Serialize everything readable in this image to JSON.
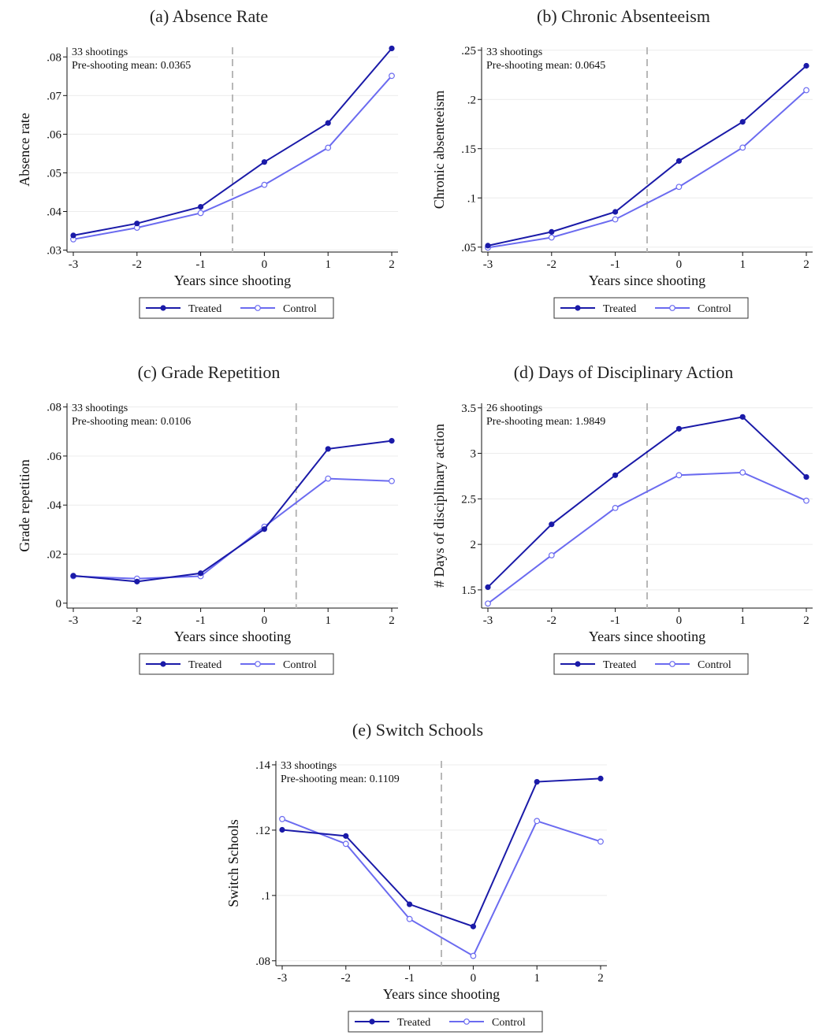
{
  "chart_data": [
    {
      "id": "a",
      "type": "line",
      "title": "(a) Absence Rate",
      "xlabel": "Years since shooting",
      "ylabel": "Absence rate",
      "x": [
        -3,
        -2,
        -1,
        0,
        1,
        2
      ],
      "xticks": [
        "-3",
        "-2",
        "-1",
        "0",
        "1",
        "2"
      ],
      "ylim": [
        0.0295,
        0.0825
      ],
      "yticks": [
        0.03,
        0.04,
        0.05,
        0.06,
        0.07,
        0.08
      ],
      "ytick_labels": [
        ".03",
        ".04",
        ".05",
        ".06",
        ".07",
        ".08"
      ],
      "event_x": -0.5,
      "annotation": [
        "33 shootings",
        "Pre-shooting mean: 0.0365"
      ],
      "series": [
        {
          "name": "Treated",
          "values": [
            0.0338,
            0.0369,
            0.0412,
            0.0528,
            0.0629,
            0.0822
          ]
        },
        {
          "name": "Control",
          "values": [
            0.0328,
            0.0358,
            0.0396,
            0.0469,
            0.0565,
            0.0751
          ]
        }
      ],
      "legend_position": "bottom-center",
      "grid": true
    },
    {
      "id": "b",
      "type": "line",
      "title": "(b) Chronic Absenteeism",
      "xlabel": "Years since shooting",
      "ylabel": "Chronic absenteeism",
      "x": [
        -3,
        -2,
        -1,
        0,
        1,
        2
      ],
      "xticks": [
        "-3",
        "-2",
        "-1",
        "0",
        "1",
        "2"
      ],
      "ylim": [
        0.045,
        0.253
      ],
      "yticks": [
        0.05,
        0.1,
        0.15,
        0.2,
        0.25
      ],
      "ytick_labels": [
        ".05",
        ".1",
        ".15",
        ".2",
        ".25"
      ],
      "event_x": -0.5,
      "annotation": [
        "33 shootings",
        "Pre-shooting mean: 0.0645"
      ],
      "series": [
        {
          "name": "Treated",
          "values": [
            0.0515,
            0.0655,
            0.0858,
            0.1375,
            0.1772,
            0.2342
          ]
        },
        {
          "name": "Control",
          "values": [
            0.0495,
            0.0598,
            0.0782,
            0.1112,
            0.1511,
            0.2094
          ]
        }
      ],
      "legend_position": "bottom-center",
      "grid": true
    },
    {
      "id": "c",
      "type": "line",
      "title": "(c) Grade Repetition",
      "xlabel": "Years since shooting",
      "ylabel": "Grade repetition",
      "x": [
        -3,
        -2,
        -1,
        0,
        1,
        2
      ],
      "xticks": [
        "-3",
        "-2",
        "-1",
        "0",
        "1",
        "2"
      ],
      "ylim": [
        -0.002,
        0.0815
      ],
      "yticks": [
        0,
        0.02,
        0.04,
        0.06,
        0.08
      ],
      "ytick_labels": [
        "0",
        ".02",
        ".04",
        ".06",
        ".08"
      ],
      "event_x": 0.5,
      "annotation": [
        "33 shootings",
        "Pre-shooting mean: 0.0106"
      ],
      "series": [
        {
          "name": "Treated",
          "values": [
            0.0112,
            0.0088,
            0.0122,
            0.0302,
            0.0629,
            0.0662
          ]
        },
        {
          "name": "Control",
          "values": [
            0.011,
            0.01,
            0.011,
            0.0312,
            0.0508,
            0.0498
          ]
        }
      ],
      "legend_position": "bottom-center",
      "grid": true
    },
    {
      "id": "d",
      "type": "line",
      "title": "(d) Days of Disciplinary Action",
      "xlabel": "Years since shooting",
      "ylabel": "# Days of disciplinary action",
      "x": [
        -3,
        -2,
        -1,
        0,
        1,
        2
      ],
      "xticks": [
        "-3",
        "-2",
        "-1",
        "0",
        "1",
        "2"
      ],
      "ylim": [
        1.3,
        3.55
      ],
      "yticks": [
        1.5,
        2,
        2.5,
        3,
        3.5
      ],
      "ytick_labels": [
        "1.5",
        "2",
        "2.5",
        "3",
        "3.5"
      ],
      "event_x": -0.5,
      "annotation": [
        "26 shootings",
        "Pre-shooting mean: 1.9849"
      ],
      "series": [
        {
          "name": "Treated",
          "values": [
            1.53,
            2.22,
            2.76,
            3.27,
            3.4,
            2.74
          ]
        },
        {
          "name": "Control",
          "values": [
            1.35,
            1.88,
            2.4,
            2.76,
            2.79,
            2.48
          ]
        }
      ],
      "legend_position": "bottom-center",
      "grid": true
    },
    {
      "id": "e",
      "type": "line",
      "title": "(e) Switch Schools",
      "xlabel": "Years since shooting",
      "ylabel": "Switch Schools",
      "x": [
        -3,
        -2,
        -1,
        0,
        1,
        2
      ],
      "xticks": [
        "-3",
        "-2",
        "-1",
        "0",
        "1",
        "2"
      ],
      "ylim": [
        0.0785,
        0.1412
      ],
      "yticks": [
        0.08,
        0.1,
        0.12,
        0.14
      ],
      "ytick_labels": [
        ".08",
        ".1",
        ".12",
        ".14"
      ],
      "event_x": -0.5,
      "annotation": [
        "33 shootings",
        "Pre-shooting mean: 0.1109"
      ],
      "series": [
        {
          "name": "Treated",
          "values": [
            0.1201,
            0.1182,
            0.0973,
            0.0905,
            0.1348,
            0.1358
          ]
        },
        {
          "name": "Control",
          "values": [
            0.1234,
            0.1158,
            0.0928,
            0.0815,
            0.1228,
            0.1165
          ]
        }
      ],
      "legend_position": "bottom-center",
      "grid": true
    }
  ],
  "colors": {
    "treated": "#1a1aa8",
    "control": "#6b6bf0",
    "event_line": "#b8b8b8",
    "grid": "#ececec",
    "axis": "#111111"
  }
}
